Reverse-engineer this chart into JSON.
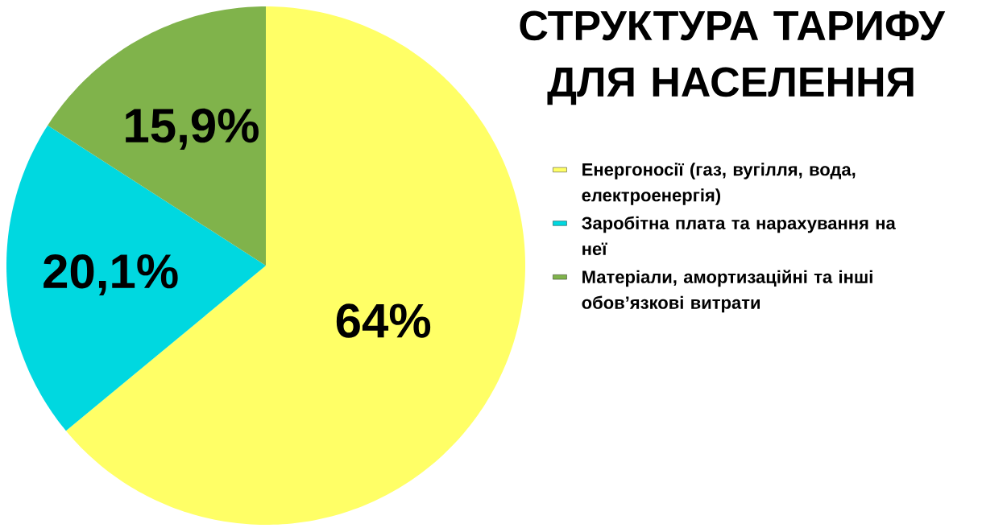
{
  "chart_data": {
    "type": "pie",
    "title": "СТРУКТУРА ТАРИФУ ДЛЯ НАСЕЛЕННЯ",
    "categories": [
      "Енергоносії (газ, вугілля, вода, електроенергія)",
      "Заробітна плата та нарахування на неї",
      "Матеріали, амортизаційні та інші обов’язкові витрати"
    ],
    "values": [
      64,
      20.1,
      15.9
    ],
    "colors": [
      "#ffff66",
      "#00d8e0",
      "#80b34b"
    ],
    "value_labels": [
      "64%",
      "20,1%",
      "15,9%"
    ],
    "legend": "right"
  }
}
